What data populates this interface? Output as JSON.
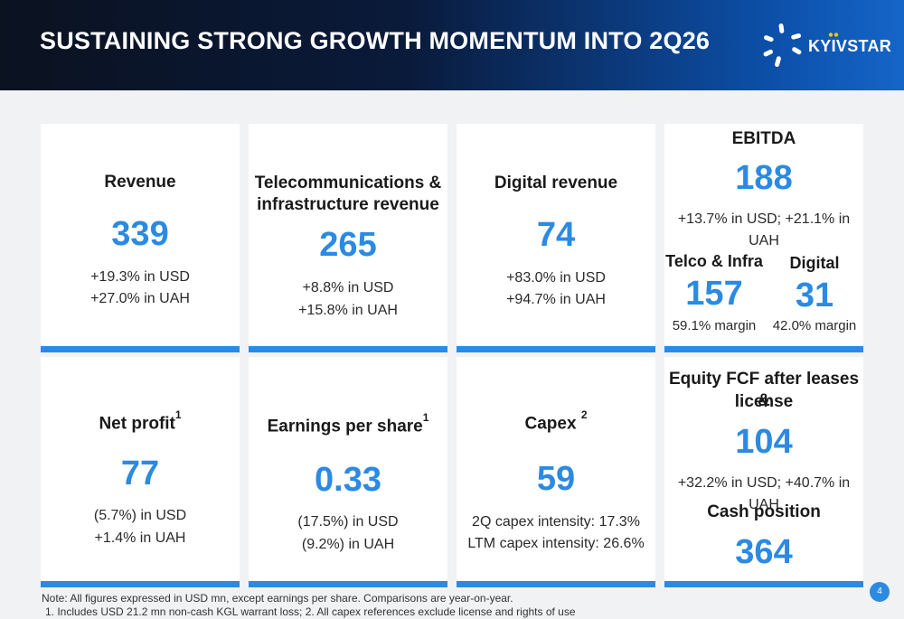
{
  "header": {
    "title": "SUSTAINING STRONG GROWTH MOMENTUM INTO 2Q26",
    "logo_text": "KYIVSTAR",
    "accent_color": "#2b8ae2"
  },
  "cards": {
    "revenue": {
      "label": "Revenue",
      "value": "339",
      "line1": "+19.3% in USD",
      "line2": "+27.0% in UAH"
    },
    "telco": {
      "label_line1": "Telecommunications &",
      "label_line2": "infrastructure revenue",
      "value": "265",
      "line1": "+8.8% in USD",
      "line2": "+15.8% in UAH"
    },
    "digital": {
      "label": "Digital revenue",
      "value": "74",
      "line1": "+83.0% in USD",
      "line2": "+94.7% in UAH"
    },
    "ebitda": {
      "label": "EBITDA",
      "value": "188",
      "line1": "+13.7% in USD; +21.1% in UAH",
      "telco_label": "Telco & Infra",
      "telco_value": "157",
      "telco_margin": "59.1% margin",
      "digital_label": "Digital",
      "digital_value": "31",
      "digital_margin": "42.0% margin"
    },
    "net_profit": {
      "label": "Net profit",
      "sup": "1",
      "value": "77",
      "line1": "(5.7%) in USD",
      "line2": "+1.4% in UAH"
    },
    "eps": {
      "label": "Earnings per share",
      "sup": "1",
      "value": "0.33",
      "line1": "(17.5%) in USD",
      "line2": "(9.2%) in UAH"
    },
    "capex": {
      "label": "Capex",
      "sup": "2",
      "value": "59",
      "line1": "2Q capex intensity: 17.3%",
      "line2": "LTM capex intensity: 26.6%"
    },
    "fcf": {
      "label_line1": "Equity FCF after leases &",
      "label_line2": "license",
      "value": "104",
      "line1": "+32.2% in USD; +40.7% in UAH",
      "cash_label": "Cash position",
      "cash_value": "364"
    }
  },
  "footnotes": {
    "note": "Note: All figures expressed in USD mn, except earnings per share. Comparisons are year-on-year.",
    "line1": "1. Includes USD 21.2 mn non-cash KGL warrant loss; 2. All capex references exclude license and rights of use"
  },
  "page_number": "4"
}
